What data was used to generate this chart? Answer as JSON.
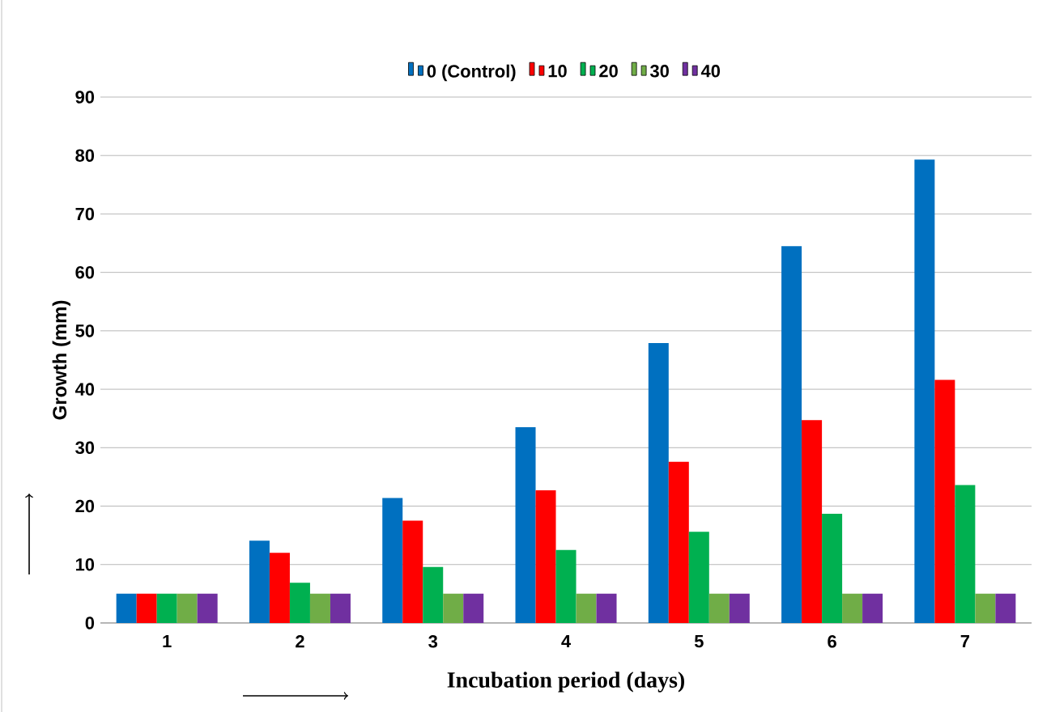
{
  "chart_data": {
    "type": "bar",
    "xlabel": "Incubation period (days)",
    "ylabel": "Growth (mm)",
    "categories": [
      "1",
      "2",
      "3",
      "4",
      "5",
      "6",
      "7"
    ],
    "series": [
      {
        "name": "0 (Control)",
        "color": "#0070c0",
        "values": [
          5,
          14.1,
          21.4,
          33.5,
          47.9,
          64.5,
          79.3
        ]
      },
      {
        "name": "10",
        "color": "#ff0000",
        "values": [
          5,
          12.0,
          17.5,
          22.7,
          27.6,
          34.7,
          41.6
        ]
      },
      {
        "name": "20",
        "color": "#00b050",
        "values": [
          5,
          6.9,
          9.6,
          12.5,
          15.6,
          18.7,
          23.6
        ]
      },
      {
        "name": "30",
        "color": "#70ad47",
        "values": [
          5,
          5,
          5,
          5,
          5,
          5,
          5
        ]
      },
      {
        "name": "40",
        "color": "#7030a0",
        "values": [
          5,
          5,
          5,
          5,
          5,
          5,
          5
        ]
      }
    ],
    "ylim": [
      0,
      90
    ],
    "yticks": [
      0,
      10,
      20,
      30,
      40,
      50,
      60,
      70,
      80,
      90
    ],
    "grid": "y",
    "legend": "top"
  }
}
